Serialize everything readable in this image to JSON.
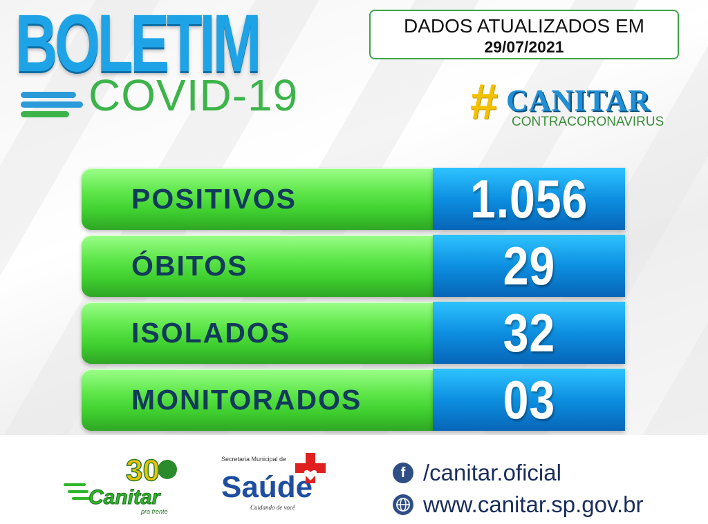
{
  "header": {
    "title_main": "BOLETIM",
    "title_sub": "COVID-19",
    "date_label": "DADOS ATUALIZADOS EM",
    "date_value": "29/07/2021"
  },
  "campaign": {
    "hash": "#",
    "name": "CANITAR",
    "tagline": "CONTRACORONAVIRUS"
  },
  "stats": [
    {
      "label": "POSITIVOS",
      "value": "1.056"
    },
    {
      "label": "ÓBITOS",
      "value": "29"
    },
    {
      "label": "ISOLADOS",
      "value": "32"
    },
    {
      "label": "MONITORADOS",
      "value": "03"
    }
  ],
  "footer": {
    "logo1_number": "30",
    "logo1_name": "Canitar",
    "logo1_slogan": "pra frente",
    "logo2_top": "Secretaria Municipal de",
    "logo2_name": "Saúde",
    "logo2_slogan": "Cuidando de você",
    "facebook_text": "/canitar.oficial",
    "website_text": "www.canitar.sp.gov.br",
    "facebook_icon": "facebook-icon",
    "website_icon": "globe-icon"
  },
  "colors": {
    "green": "#3fcf2f",
    "blue": "#0d8fe0",
    "label_text": "#123a5a"
  }
}
